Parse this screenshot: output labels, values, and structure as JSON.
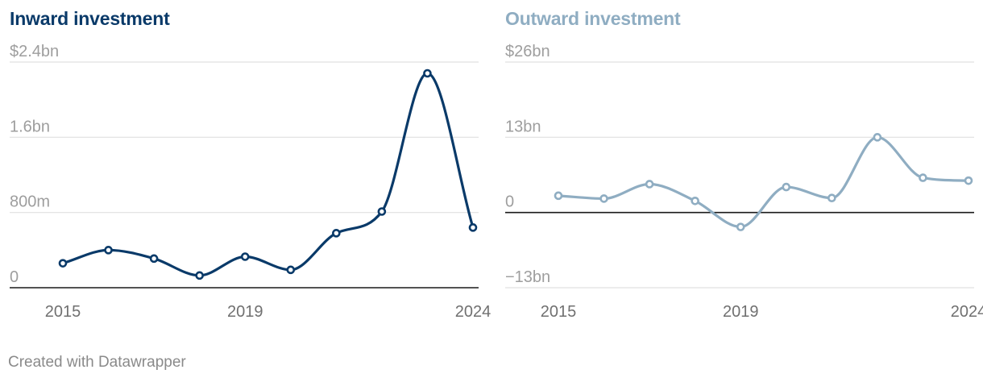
{
  "chart_data": [
    {
      "type": "line",
      "title": "Inward investment",
      "color": "#0a3a69",
      "x": [
        2015,
        2016,
        2017,
        2018,
        2019,
        2020,
        2021,
        2022,
        2023,
        2024
      ],
      "values": [
        0.26,
        0.4,
        0.31,
        0.13,
        0.33,
        0.19,
        0.58,
        0.81,
        2.28,
        0.64
      ],
      "unit": "bn",
      "ylim": [
        0,
        2.4
      ],
      "y_ticks": [
        2.4,
        1.6,
        0.8,
        0
      ],
      "y_tick_labels": [
        "$2.4bn",
        "1.6bn",
        "800m",
        "0"
      ],
      "x_tick_labels": [
        "2015",
        "2019",
        "2024"
      ],
      "grid": true,
      "baseline": 0
    },
    {
      "type": "line",
      "title": "Outward investment",
      "color": "#8fadc2",
      "x": [
        2015,
        2016,
        2017,
        2018,
        2019,
        2020,
        2021,
        2022,
        2023,
        2024
      ],
      "values": [
        2.9,
        2.4,
        4.9,
        2.0,
        -2.5,
        4.4,
        2.5,
        13.0,
        6.0,
        5.5
      ],
      "unit": "bn",
      "ylim": [
        -13,
        26
      ],
      "y_ticks": [
        26,
        13,
        0,
        -13
      ],
      "y_tick_labels": [
        "$26bn",
        "13bn",
        "0",
        "−13bn"
      ],
      "x_tick_labels": [
        "2015",
        "2019",
        "2024"
      ],
      "grid": true,
      "baseline": 0
    }
  ],
  "footer": {
    "credit": "Created with Datawrapper"
  }
}
